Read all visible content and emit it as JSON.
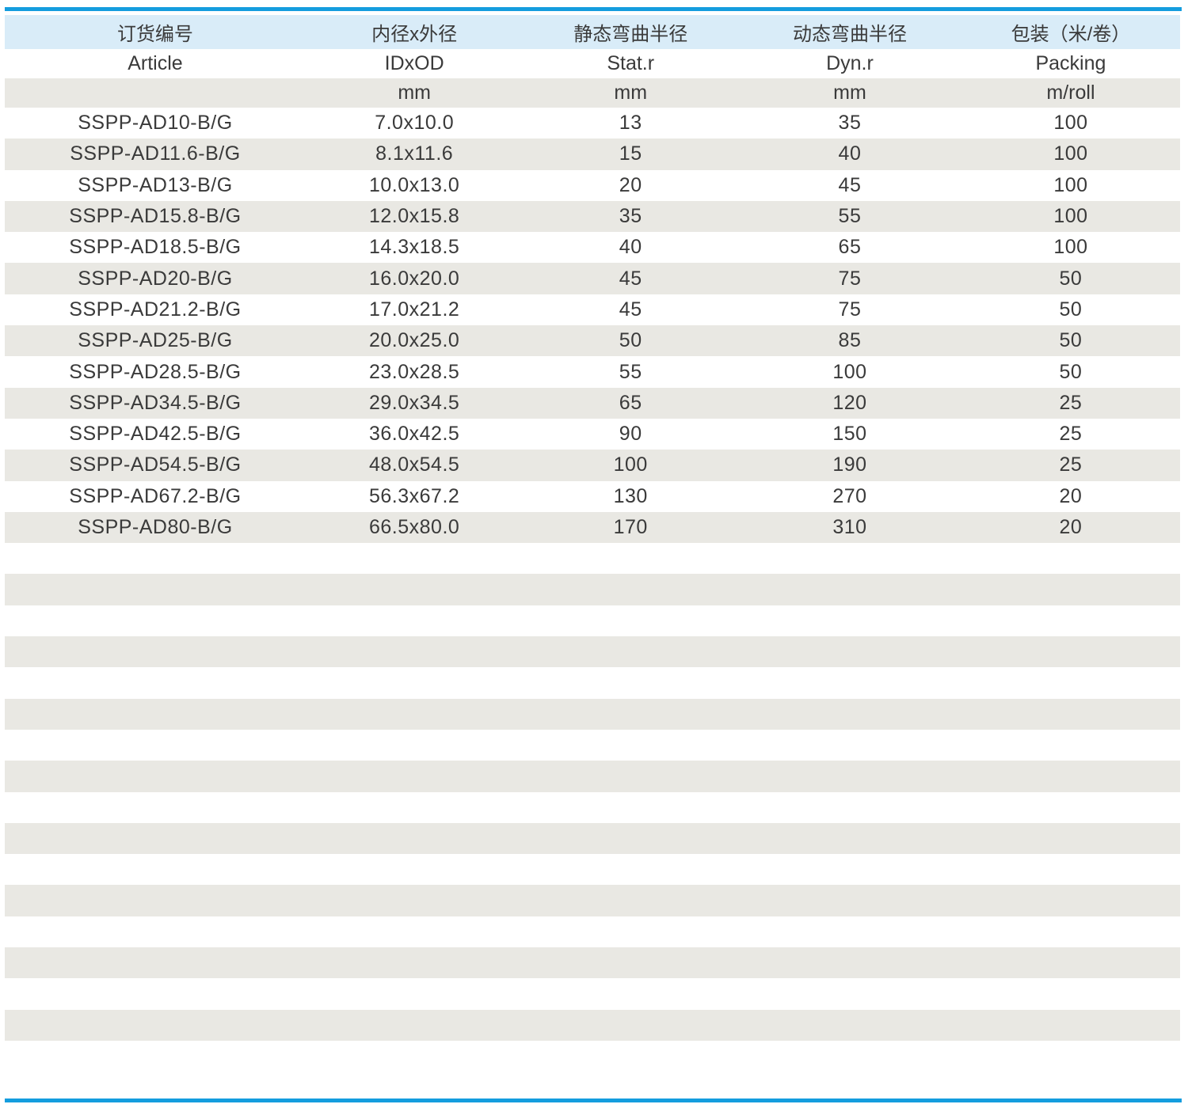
{
  "table": {
    "columns": [
      {
        "zh": "订货编号",
        "en": "Article",
        "unit": ""
      },
      {
        "zh": "内径x外径",
        "en": "IDxOD",
        "unit": "mm"
      },
      {
        "zh": "静态弯曲半径",
        "en": "Stat.r",
        "unit": "mm"
      },
      {
        "zh": "动态弯曲半径",
        "en": "Dyn.r",
        "unit": "mm"
      },
      {
        "zh": "包装（米/卷）",
        "en": "Packing",
        "unit": "m/roll"
      }
    ],
    "rows": [
      [
        "SSPP-AD10-B/G",
        "7.0x10.0",
        "13",
        "35",
        "100"
      ],
      [
        "SSPP-AD11.6-B/G",
        "8.1x11.6",
        "15",
        "40",
        "100"
      ],
      [
        "SSPP-AD13-B/G",
        "10.0x13.0",
        "20",
        "45",
        "100"
      ],
      [
        "SSPP-AD15.8-B/G",
        "12.0x15.8",
        "35",
        "55",
        "100"
      ],
      [
        "SSPP-AD18.5-B/G",
        "14.3x18.5",
        "40",
        "65",
        "100"
      ],
      [
        "SSPP-AD20-B/G",
        "16.0x20.0",
        "45",
        "75",
        "50"
      ],
      [
        "SSPP-AD21.2-B/G",
        "17.0x21.2",
        "45",
        "75",
        "50"
      ],
      [
        "SSPP-AD25-B/G",
        "20.0x25.0",
        "50",
        "85",
        "50"
      ],
      [
        "SSPP-AD28.5-B/G",
        "23.0x28.5",
        "55",
        "100",
        "50"
      ],
      [
        "SSPP-AD34.5-B/G",
        "29.0x34.5",
        "65",
        "120",
        "25"
      ],
      [
        "SSPP-AD42.5-B/G",
        "36.0x42.5",
        "90",
        "150",
        "25"
      ],
      [
        "SSPP-AD54.5-B/G",
        "48.0x54.5",
        "100",
        "190",
        "25"
      ],
      [
        "SSPP-AD67.2-B/G",
        "56.3x67.2",
        "130",
        "270",
        "20"
      ],
      [
        "SSPP-AD80-B/G",
        "66.5x80.0",
        "170",
        "310",
        "20"
      ]
    ],
    "empty_row_count": 16
  },
  "colors": {
    "accent_blue": "#149dde",
    "header_bg": "#d9ecf8",
    "stripe_bg": "#e9e8e3",
    "text": "#3a3a3a"
  }
}
